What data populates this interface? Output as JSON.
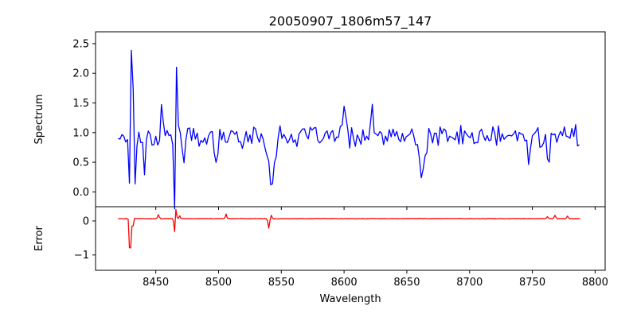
{
  "chart_data": [
    {
      "type": "line",
      "title": "20050907_1806m57_147",
      "xlabel": "",
      "ylabel": "Spectrum",
      "xlim": [
        8402,
        8808
      ],
      "ylim": [
        -0.25,
        2.7
      ],
      "xticks": [
        8450,
        8500,
        8550,
        8600,
        8650,
        8700,
        8750,
        8800
      ],
      "yticks": [
        0.0,
        0.5,
        1.0,
        1.5,
        2.0,
        2.5
      ],
      "ytick_labels": [
        "0.0",
        "0.5",
        "1.0",
        "1.5",
        "2.0",
        "2.5"
      ],
      "series": [
        {
          "name": "spectrum",
          "color": "#0000ff",
          "x_start": 8420,
          "x_step": 1.5,
          "y_base": 0.93,
          "y_noise": 0.14,
          "features": [
            {
              "center": 8431.0,
              "amp": 1.62,
              "width": 0.9
            },
            {
              "center": 8429.0,
              "amp": -0.78,
              "width": 0.6
            },
            {
              "center": 8433.5,
              "amp": -0.85,
              "width": 0.6
            },
            {
              "center": 8466.5,
              "amp": 1.38,
              "width": 0.6
            },
            {
              "center": 8465.0,
              "amp": -1.16,
              "width": 0.6
            },
            {
              "center": 8455.0,
              "amp": 0.62,
              "width": 0.8
            },
            {
              "center": 8441.0,
              "amp": -0.58,
              "width": 0.6
            },
            {
              "center": 8472.0,
              "amp": -0.5,
              "width": 0.7
            },
            {
              "center": 8498.0,
              "amp": -0.5,
              "width": 1.2
            },
            {
              "center": 8542.0,
              "amp": -0.75,
              "width": 2.2
            },
            {
              "center": 8600.0,
              "amp": 0.62,
              "width": 0.9
            },
            {
              "center": 8622.0,
              "amp": 0.45,
              "width": 0.8
            },
            {
              "center": 8662.0,
              "amp": -0.62,
              "width": 2.2
            },
            {
              "center": 8747.0,
              "amp": -0.48,
              "width": 0.8
            },
            {
              "center": 8763.0,
              "amp": -0.4,
              "width": 0.8
            },
            {
              "center": 8784.0,
              "amp": 0.28,
              "width": 0.8
            }
          ]
        }
      ]
    },
    {
      "type": "line",
      "title": "",
      "xlabel": "Wavelength",
      "ylabel": "Error",
      "xlim": [
        8402,
        8808
      ],
      "ylim": [
        -1.45,
        0.42
      ],
      "xticks": [
        8450,
        8500,
        8550,
        8600,
        8650,
        8700,
        8750,
        8800
      ],
      "xtick_labels": [
        "8450",
        "8500",
        "8550",
        "8600",
        "8650",
        "8700",
        "8750",
        "8800"
      ],
      "yticks": [
        0,
        -1
      ],
      "ytick_labels": [
        "0",
        "−1"
      ],
      "series": [
        {
          "name": "error",
          "color": "#ff0000",
          "x_start": 8420,
          "x_step": 1.0,
          "y_base": 0.07,
          "y_noise": 0.006,
          "features": [
            {
              "center": 8429.5,
              "amp": -1.42,
              "width": 0.5
            },
            {
              "center": 8431.5,
              "amp": -0.35,
              "width": 0.5
            },
            {
              "center": 8452.0,
              "amp": 0.12,
              "width": 0.6
            },
            {
              "center": 8466.0,
              "amp": 0.32,
              "width": 0.5
            },
            {
              "center": 8465.0,
              "amp": -0.42,
              "width": 0.5
            },
            {
              "center": 8469.0,
              "amp": 0.08,
              "width": 0.5
            },
            {
              "center": 8506.0,
              "amp": 0.14,
              "width": 0.5
            },
            {
              "center": 8540.0,
              "amp": -0.28,
              "width": 0.6
            },
            {
              "center": 8542.0,
              "amp": 0.1,
              "width": 0.5
            },
            {
              "center": 8762.0,
              "amp": 0.06,
              "width": 0.6
            },
            {
              "center": 8768.0,
              "amp": 0.1,
              "width": 0.6
            },
            {
              "center": 8778.0,
              "amp": 0.08,
              "width": 0.6
            }
          ]
        }
      ]
    }
  ]
}
